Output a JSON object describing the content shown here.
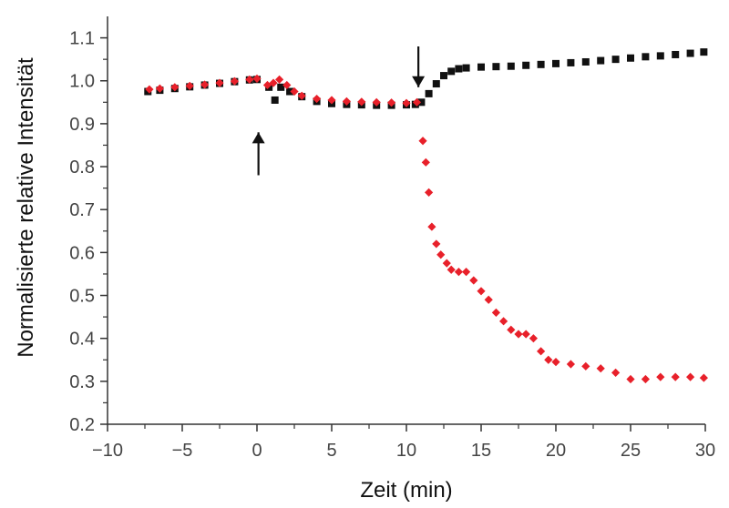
{
  "chart_data": {
    "type": "scatter",
    "title": "",
    "xlabel": "Zeit (min)",
    "ylabel": "Normalisierte relative Intensität",
    "xlim": [
      -10,
      30
    ],
    "ylim": [
      0.2,
      1.15
    ],
    "x_ticks": [
      -10,
      -5,
      0,
      5,
      10,
      15,
      20,
      25,
      30
    ],
    "x_tick_labels": [
      "−10",
      "−5",
      "0",
      "5",
      "10",
      "15",
      "20",
      "25",
      "30"
    ],
    "y_ticks": [
      0.2,
      0.3,
      0.4,
      0.5,
      0.6,
      0.7,
      0.8,
      0.9,
      1.0,
      1.1
    ],
    "y_tick_labels": [
      "0.2",
      "0.3",
      "0.4",
      "0.5",
      "0.6",
      "0.7",
      "0.8",
      "0.9",
      "1.0",
      "1.1"
    ],
    "grid": false,
    "legend": "none",
    "colors": {
      "series_black": "#111111",
      "series_red": "#e8202a",
      "axis": "#333333"
    },
    "series": [
      {
        "color": "#111111",
        "marker": "square",
        "points": [
          [
            -7.3,
            0.975
          ],
          [
            -6.5,
            0.978
          ],
          [
            -5.5,
            0.982
          ],
          [
            -4.5,
            0.986
          ],
          [
            -3.5,
            0.99
          ],
          [
            -2.5,
            0.994
          ],
          [
            -1.5,
            0.998
          ],
          [
            -0.5,
            1.002
          ],
          [
            0,
            1.003
          ],
          [
            0.8,
            0.985
          ],
          [
            1.2,
            0.955
          ],
          [
            1.6,
            0.985
          ],
          [
            2.2,
            0.975
          ],
          [
            3,
            0.963
          ],
          [
            4,
            0.952
          ],
          [
            5,
            0.947
          ],
          [
            6,
            0.945
          ],
          [
            7,
            0.944
          ],
          [
            8,
            0.943
          ],
          [
            9,
            0.943
          ],
          [
            10,
            0.944
          ],
          [
            10.6,
            0.945
          ],
          [
            11,
            0.95
          ],
          [
            11.5,
            0.97
          ],
          [
            12,
            0.993
          ],
          [
            12.5,
            1.012
          ],
          [
            13,
            1.022
          ],
          [
            13.5,
            1.028
          ],
          [
            14,
            1.03
          ],
          [
            15,
            1.032
          ],
          [
            16,
            1.033
          ],
          [
            17,
            1.034
          ],
          [
            18,
            1.036
          ],
          [
            19,
            1.038
          ],
          [
            20,
            1.04
          ],
          [
            21,
            1.042
          ],
          [
            22,
            1.044
          ],
          [
            23,
            1.047
          ],
          [
            24,
            1.05
          ],
          [
            25,
            1.053
          ],
          [
            26,
            1.056
          ],
          [
            27,
            1.058
          ],
          [
            28,
            1.061
          ],
          [
            29,
            1.064
          ],
          [
            29.9,
            1.067
          ]
        ]
      },
      {
        "color": "#e8202a",
        "marker": "diamond",
        "points": [
          [
            -7.2,
            0.98
          ],
          [
            -6.5,
            0.982
          ],
          [
            -5.5,
            0.985
          ],
          [
            -4.5,
            0.988
          ],
          [
            -3.5,
            0.991
          ],
          [
            -2.5,
            0.995
          ],
          [
            -1.5,
            0.999
          ],
          [
            -0.5,
            1.003
          ],
          [
            0,
            1.005
          ],
          [
            0.7,
            0.99
          ],
          [
            1.1,
            0.995
          ],
          [
            1.5,
            1.003
          ],
          [
            2,
            0.99
          ],
          [
            2.5,
            0.975
          ],
          [
            3,
            0.965
          ],
          [
            4,
            0.958
          ],
          [
            5,
            0.955
          ],
          [
            6,
            0.952
          ],
          [
            7,
            0.951
          ],
          [
            8,
            0.95
          ],
          [
            9,
            0.949
          ],
          [
            10,
            0.948
          ],
          [
            10.7,
            0.95
          ],
          [
            11.1,
            0.86
          ],
          [
            11.3,
            0.81
          ],
          [
            11.5,
            0.74
          ],
          [
            11.7,
            0.66
          ],
          [
            12,
            0.62
          ],
          [
            12.3,
            0.595
          ],
          [
            12.7,
            0.575
          ],
          [
            13,
            0.56
          ],
          [
            13.5,
            0.555
          ],
          [
            14,
            0.555
          ],
          [
            14.5,
            0.535
          ],
          [
            15,
            0.51
          ],
          [
            15.5,
            0.49
          ],
          [
            16,
            0.46
          ],
          [
            16.5,
            0.44
          ],
          [
            17,
            0.42
          ],
          [
            17.5,
            0.41
          ],
          [
            18,
            0.41
          ],
          [
            18.5,
            0.4
          ],
          [
            19,
            0.37
          ],
          [
            19.5,
            0.35
          ],
          [
            20,
            0.345
          ],
          [
            21,
            0.34
          ],
          [
            22,
            0.335
          ],
          [
            23,
            0.33
          ],
          [
            24,
            0.32
          ],
          [
            25,
            0.305
          ],
          [
            26,
            0.305
          ],
          [
            27,
            0.31
          ],
          [
            28,
            0.31
          ],
          [
            29,
            0.31
          ],
          [
            29.9,
            0.308
          ]
        ]
      }
    ],
    "annotations": [
      {
        "type": "arrow",
        "direction": "up",
        "x": 0.1,
        "y_tip": 0.88,
        "y_tail": 0.78
      },
      {
        "type": "arrow",
        "direction": "down",
        "x": 10.8,
        "y_tip": 0.985,
        "y_tail": 1.08
      }
    ]
  }
}
